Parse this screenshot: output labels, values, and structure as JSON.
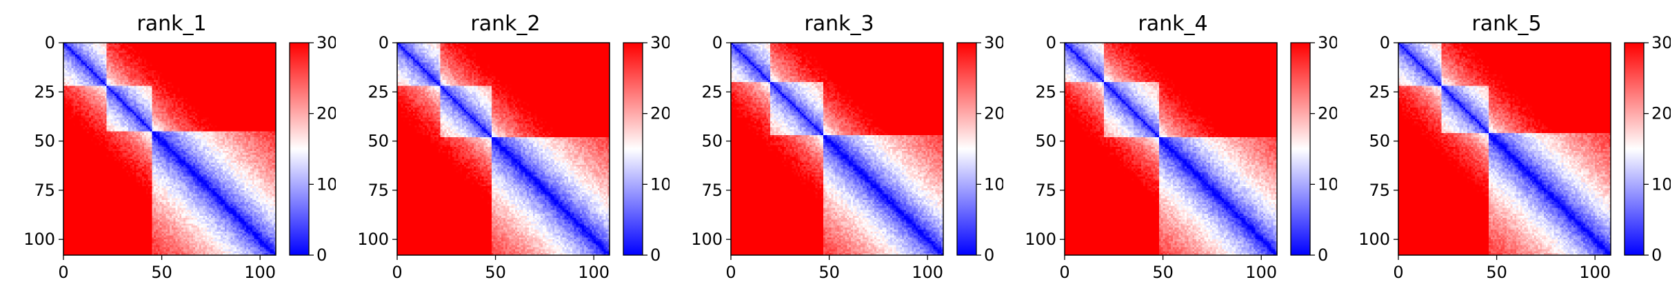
{
  "colormap": {
    "low": "#0000ff",
    "mid": "#ffffff",
    "high": "#ff0000",
    "vmin": 0,
    "vmax": 30
  },
  "chart_data": [
    {
      "type": "heatmap",
      "title": "rank_1",
      "size": 108,
      "xticks": [
        0,
        50,
        100
      ],
      "yticks": [
        0,
        25,
        50,
        75,
        100
      ],
      "colorbar_ticks": [
        0,
        10,
        20,
        30
      ],
      "domain_breaks": [
        22,
        45
      ]
    },
    {
      "type": "heatmap",
      "title": "rank_2",
      "size": 108,
      "xticks": [
        0,
        50,
        100
      ],
      "yticks": [
        0,
        25,
        50,
        75,
        100
      ],
      "colorbar_ticks": [
        0,
        10,
        20,
        30
      ],
      "domain_breaks": [
        22,
        48
      ]
    },
    {
      "type": "heatmap",
      "title": "rank_3",
      "size": 108,
      "xticks": [
        0,
        50,
        100
      ],
      "yticks": [
        0,
        25,
        50,
        75,
        100
      ],
      "colorbar_ticks": [
        0,
        10,
        20,
        30
      ],
      "domain_breaks": [
        20,
        47
      ]
    },
    {
      "type": "heatmap",
      "title": "rank_4",
      "size": 108,
      "xticks": [
        0,
        50,
        100
      ],
      "yticks": [
        0,
        25,
        50,
        75,
        100
      ],
      "colorbar_ticks": [
        0,
        10,
        20,
        30
      ],
      "domain_breaks": [
        20,
        48
      ]
    },
    {
      "type": "heatmap",
      "title": "rank_5",
      "size": 108,
      "xticks": [
        0,
        50,
        100
      ],
      "yticks": [
        0,
        25,
        50,
        75,
        100
      ],
      "colorbar_ticks": [
        0,
        10,
        20,
        30
      ],
      "domain_breaks": [
        22,
        46
      ]
    }
  ]
}
